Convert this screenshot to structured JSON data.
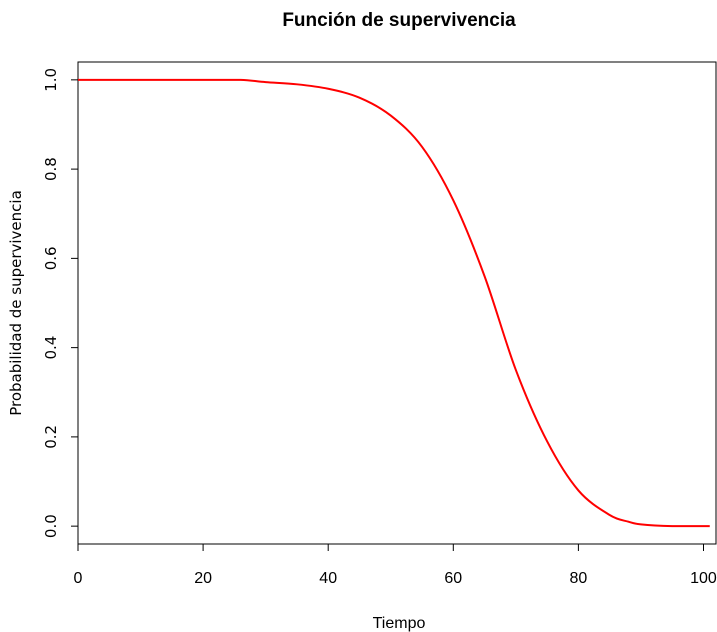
{
  "chart_data": {
    "type": "line",
    "title": "Función de supervivencia",
    "xlabel": "Tiempo",
    "ylabel": "Probabilidad de supervivencia",
    "xlim": [
      0,
      102
    ],
    "ylim": [
      -0.04,
      1.04
    ],
    "xticks": [
      0,
      20,
      40,
      60,
      80,
      100
    ],
    "xtick_labels": [
      "0",
      "20",
      "40",
      "60",
      "80",
      "100"
    ],
    "yticks": [
      0.0,
      0.2,
      0.4,
      0.6,
      0.8,
      1.0
    ],
    "ytick_labels": [
      "0.0",
      "0.2",
      "0.4",
      "0.6",
      "0.8",
      "1.0"
    ],
    "grid": false,
    "series": [
      {
        "color": "#ff0000",
        "x": [
          0,
          20,
          26,
          30,
          35,
          40,
          45,
          50,
          55,
          60,
          65,
          70,
          75,
          80,
          85,
          88,
          90,
          95,
          101
        ],
        "y": [
          1.0,
          1.0,
          1.0,
          0.995,
          0.99,
          0.98,
          0.96,
          0.92,
          0.85,
          0.73,
          0.56,
          0.35,
          0.19,
          0.08,
          0.025,
          0.01,
          0.004,
          0.0,
          0.0
        ]
      }
    ]
  }
}
